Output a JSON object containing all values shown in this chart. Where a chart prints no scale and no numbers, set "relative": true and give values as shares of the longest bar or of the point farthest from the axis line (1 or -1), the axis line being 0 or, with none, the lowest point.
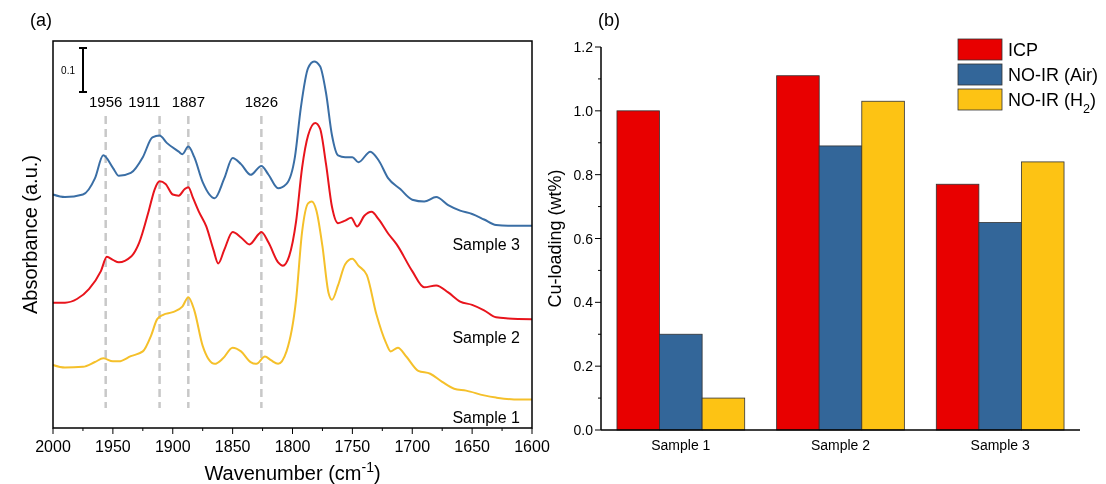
{
  "chart_data": [
    {
      "type": "line",
      "title": "(a)",
      "xlabel": "Wavenumber (cm$^{-1}$)",
      "ylabel": "Absorbance (a.u.)",
      "relative": true,
      "tick_labels": "x",
      "marker": "none",
      "line_style": "solid",
      "xlim": [
        2000,
        1600
      ],
      "xticks": [
        2000,
        {
          "value": 1975,
          "label": null
        },
        1950,
        {
          "value": 1925,
          "label": null
        },
        1900,
        {
          "value": 1875,
          "label": null
        },
        1850,
        {
          "value": 1825,
          "label": null
        },
        1800,
        {
          "value": 1775,
          "label": null
        },
        1750,
        {
          "value": 1725,
          "label": null
        },
        1700,
        {
          "value": 1675,
          "label": null
        },
        1650,
        {
          "value": 1625,
          "label": null
        },
        1600
      ],
      "annotations": [
        "0.1"
      ],
      "ref_lines": [
        {
          "axis": "x",
          "value": 1956,
          "label": "1956",
          "color": "#c8c8c8",
          "line_style": "dashed"
        },
        {
          "axis": "x",
          "value": 1911,
          "label": "1911",
          "color": "#c8c8c8",
          "line_style": "dashed"
        },
        {
          "axis": "x",
          "value": 1887,
          "label": "1887",
          "color": "#c8c8c8",
          "line_style": "dashed"
        },
        {
          "axis": "x",
          "value": 1826,
          "label": "1826",
          "color": "#c8c8c8",
          "line_style": "dashed"
        }
      ],
      "series": [
        {
          "name": "Sample 3",
          "color": "#3a6ea5",
          "x": [
            2000,
            1990,
            1975,
            1965,
            1958,
            1950,
            1945,
            1935,
            1925,
            1917,
            1911,
            1905,
            1895,
            1892,
            1887,
            1882,
            1875,
            1865,
            1857,
            1850,
            1843,
            1835,
            1826,
            1820,
            1812,
            1805,
            1798,
            1793,
            1787,
            1782,
            1777,
            1772,
            1767,
            1762,
            1756,
            1750,
            1745,
            1735,
            1728,
            1720,
            1710,
            1700,
            1690,
            1680,
            1670,
            1660,
            1650,
            1640,
            1630,
            1620,
            1600
          ],
          "values": [
            0.637,
            0.63,
            0.637,
            0.681,
            0.744,
            0.71,
            0.688,
            0.696,
            0.739,
            0.793,
            0.798,
            0.778,
            0.754,
            0.747,
            0.768,
            0.739,
            0.671,
            0.627,
            0.681,
            0.737,
            0.72,
            0.691,
            0.715,
            0.691,
            0.654,
            0.666,
            0.739,
            0.875,
            0.982,
            1.0,
            0.987,
            0.914,
            0.798,
            0.744,
            0.739,
            0.739,
            0.725,
            0.754,
            0.73,
            0.681,
            0.652,
            0.623,
            0.618,
            0.63,
            0.608,
            0.593,
            0.584,
            0.569,
            0.554,
            0.552,
            0.552
          ]
        },
        {
          "name": "Sample 2",
          "color": "#e8141c",
          "x": [
            2000,
            1990,
            1980,
            1970,
            1960,
            1955,
            1950,
            1945,
            1935,
            1928,
            1920,
            1915,
            1911,
            1906,
            1900,
            1895,
            1890,
            1887,
            1883,
            1878,
            1872,
            1866,
            1862,
            1857,
            1850,
            1843,
            1836,
            1828,
            1826,
            1820,
            1812,
            1808,
            1803,
            1797,
            1792,
            1787,
            1781,
            1777,
            1772,
            1767,
            1762,
            1756,
            1751,
            1746,
            1740,
            1734,
            1728,
            1720,
            1713,
            1700,
            1690,
            1680,
            1670,
            1660,
            1650,
            1640,
            1630,
            1620,
            1600
          ],
          "values": [
            0.342,
            0.342,
            0.352,
            0.379,
            0.428,
            0.467,
            0.459,
            0.452,
            0.467,
            0.506,
            0.593,
            0.652,
            0.673,
            0.666,
            0.637,
            0.634,
            0.652,
            0.657,
            0.627,
            0.589,
            0.55,
            0.486,
            0.449,
            0.486,
            0.535,
            0.52,
            0.501,
            0.53,
            0.535,
            0.506,
            0.452,
            0.443,
            0.467,
            0.564,
            0.71,
            0.798,
            0.832,
            0.817,
            0.72,
            0.603,
            0.559,
            0.566,
            0.574,
            0.55,
            0.579,
            0.59,
            0.569,
            0.53,
            0.501,
            0.428,
            0.384,
            0.389,
            0.37,
            0.345,
            0.336,
            0.321,
            0.302,
            0.299,
            0.297
          ]
        },
        {
          "name": "Sample 1",
          "color": "#f5c02a",
          "x": [
            2000,
            1990,
            1975,
            1965,
            1958,
            1950,
            1945,
            1935,
            1925,
            1918,
            1913,
            1908,
            1900,
            1892,
            1887,
            1882,
            1875,
            1865,
            1858,
            1850,
            1843,
            1835,
            1830,
            1823,
            1818,
            1812,
            1805,
            1797,
            1792,
            1787,
            1784,
            1780,
            1775,
            1770,
            1767,
            1762,
            1756,
            1750,
            1745,
            1738,
            1730,
            1722,
            1718,
            1712,
            1705,
            1695,
            1685,
            1675,
            1665,
            1655,
            1640,
            1630,
            1615,
            1600
          ],
          "values": [
            0.172,
            0.165,
            0.167,
            0.18,
            0.19,
            0.182,
            0.182,
            0.196,
            0.209,
            0.253,
            0.297,
            0.309,
            0.316,
            0.331,
            0.357,
            0.321,
            0.224,
            0.175,
            0.19,
            0.219,
            0.209,
            0.18,
            0.175,
            0.195,
            0.185,
            0.175,
            0.209,
            0.35,
            0.535,
            0.613,
            0.618,
            0.593,
            0.496,
            0.37,
            0.35,
            0.389,
            0.447,
            0.462,
            0.443,
            0.418,
            0.311,
            0.233,
            0.209,
            0.219,
            0.195,
            0.156,
            0.148,
            0.126,
            0.107,
            0.102,
            0.089,
            0.083,
            0.078,
            0.078
          ]
        }
      ]
    },
    {
      "type": "bar",
      "title": "(b)",
      "ylabel": "Cu-loading (wt%)",
      "categories": [
        "Sample 1",
        "Sample 2",
        "Sample 3"
      ],
      "legend": "top right",
      "grid": false,
      "ylim": [
        0,
        1.2
      ],
      "yticks": [
        {
          "value": 0,
          "label": "0.0"
        },
        {
          "value": 0.1,
          "label": null
        },
        {
          "value": 0.2,
          "label": "0.2"
        },
        {
          "value": 0.3,
          "label": null
        },
        {
          "value": 0.4,
          "label": "0.4"
        },
        {
          "value": 0.5,
          "label": null
        },
        {
          "value": 0.6,
          "label": "0.6"
        },
        {
          "value": 0.7,
          "label": null
        },
        {
          "value": 0.8,
          "label": "0.8"
        },
        {
          "value": 0.9,
          "label": null
        },
        {
          "value": 1.0,
          "label": "1.0"
        },
        {
          "value": 1.1,
          "label": null
        },
        {
          "value": 1.2,
          "label": "1.2"
        }
      ],
      "series": [
        {
          "name": "ICP",
          "color": "#e80000",
          "values": [
            1.0,
            1.11,
            0.77
          ]
        },
        {
          "name": "NO-IR (Air)",
          "color": "#336699",
          "values": [
            0.3,
            0.89,
            0.65
          ]
        },
        {
          "name": "NO-IR (H$_{2}$)",
          "color": "#fdc314",
          "values": [
            0.1,
            1.03,
            0.84
          ]
        }
      ]
    }
  ]
}
